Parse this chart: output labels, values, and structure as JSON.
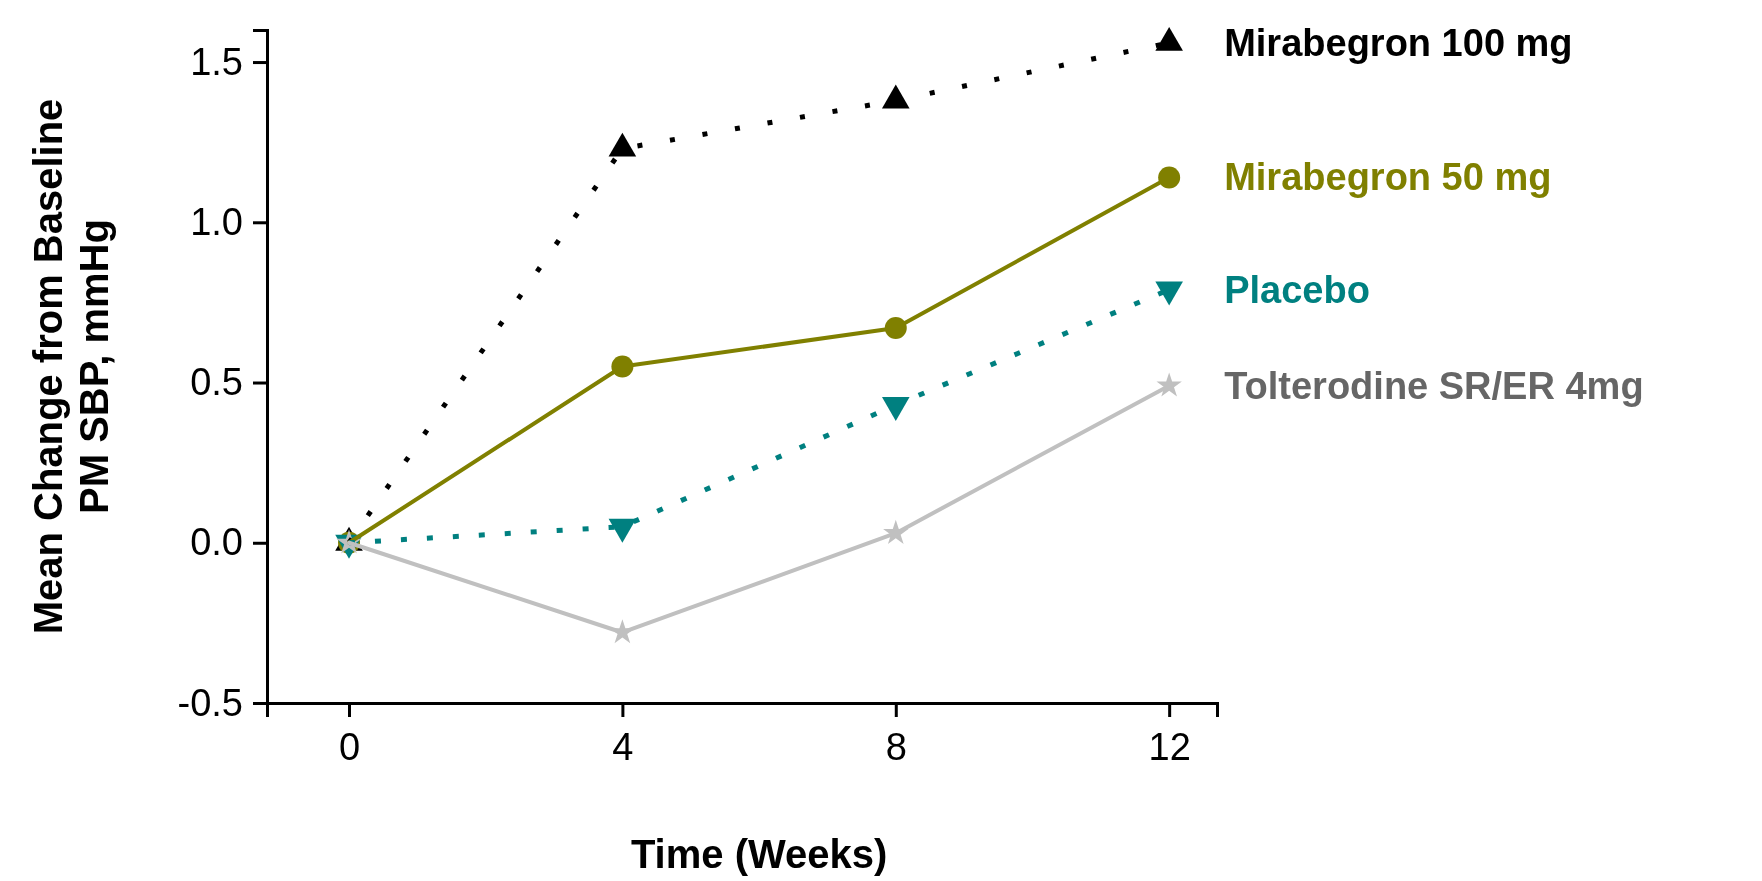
{
  "chart_data": {
    "type": "line",
    "xlabel": "Time (Weeks)",
    "ylabel": "Mean Change from Baseline\nPM SBP, mmHg",
    "x": [
      0,
      4,
      8,
      12
    ],
    "xlim": [
      -1.2,
      12.7
    ],
    "xticks": [
      0,
      4,
      8,
      12
    ],
    "ylim": [
      -0.5,
      1.6
    ],
    "yticks": [
      {
        "value": -0.5,
        "label": "-0.5"
      },
      {
        "value": 0,
        "label": "0.0"
      },
      {
        "value": 0.5,
        "label": "0.5"
      },
      {
        "value": 1,
        "label": "1.0"
      },
      {
        "value": 1.5,
        "label": "1.5"
      }
    ],
    "grid": false,
    "legend": "right",
    "series": [
      {
        "name": "Mirabegron 100 mg",
        "color": "#000000",
        "values": [
          0,
          1.23,
          1.38,
          1.56
        ],
        "marker": "triangle",
        "line_style": "dotted"
      },
      {
        "name": "Mirabegron 50 mg",
        "color": "#808000",
        "values": [
          0,
          0.55,
          0.67,
          1.14
        ],
        "marker": "circle",
        "line_style": "solid"
      },
      {
        "name": "Placebo",
        "color": "#008080",
        "values": [
          0,
          0.05,
          0.43,
          0.79
        ],
        "marker": "triangle-down",
        "line_style": "dashed"
      },
      {
        "name": "Tolterodine SR/ER 4mg",
        "color": "#c0c0c0",
        "values": [
          0,
          -0.28,
          0.03,
          0.49
        ],
        "marker": "star",
        "line_style": "solid"
      }
    ]
  }
}
